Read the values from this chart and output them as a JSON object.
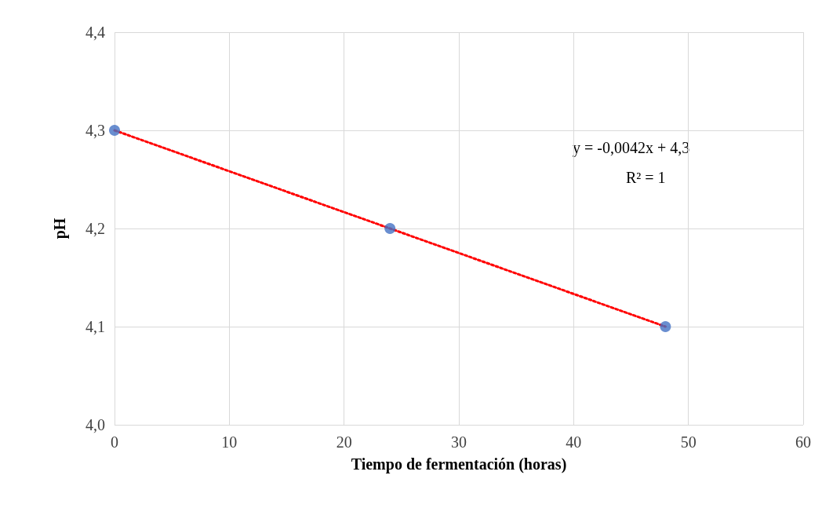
{
  "chart_data": {
    "type": "scatter",
    "xlabel": "Tiempo de fermentación (horas)",
    "ylabel": "pH",
    "series": [
      {
        "type": "scatter",
        "color": "#4472c4",
        "x": [
          0,
          24,
          48
        ],
        "values": [
          4.3,
          4.2,
          4.1
        ],
        "marker": "circle"
      },
      {
        "type": "line",
        "color": "#ff0000",
        "x": [
          0,
          48
        ],
        "values": [
          4.3,
          4.1
        ],
        "marker": "none",
        "line_style": "dotted"
      }
    ],
    "xlim": [
      0,
      60
    ],
    "xticks": [
      0,
      10,
      20,
      30,
      40,
      50,
      60
    ],
    "ylim": [
      4.0,
      4.4
    ],
    "yticks": [
      {
        "value": 4.0,
        "label": "4,0"
      },
      {
        "value": 4.1,
        "label": "4,1"
      },
      {
        "value": 4.2,
        "label": "4,2"
      },
      {
        "value": 4.3,
        "label": "4,3"
      },
      {
        "value": 4.4,
        "label": "4,4"
      }
    ],
    "grid": true,
    "annotations": [
      "y = -0,0042x + 4,3",
      "R² = 1"
    ]
  }
}
